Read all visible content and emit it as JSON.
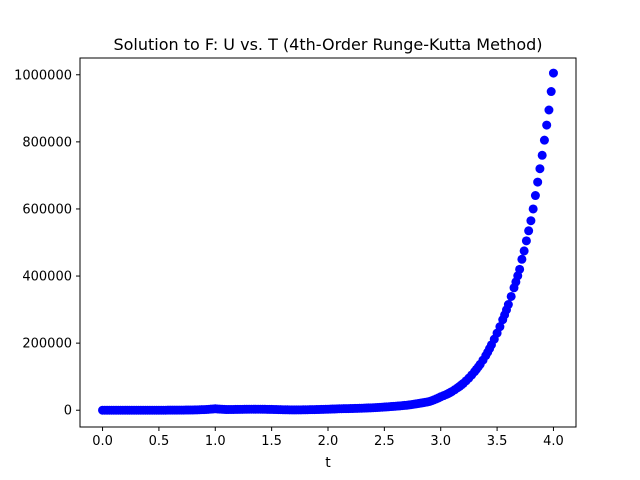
{
  "chart_data": {
    "type": "scatter",
    "title": "Solution to F: U vs. T (4th-Order Runge-Kutta Method)",
    "xlabel": "t",
    "ylabel": "",
    "xlim": [
      -0.2,
      4.2
    ],
    "ylim": [
      -50000,
      1050000
    ],
    "xticks": [
      0.0,
      0.5,
      1.0,
      1.5,
      2.0,
      2.5,
      3.0,
      3.5,
      4.0
    ],
    "xtick_labels": [
      "0.0",
      "0.5",
      "1.0",
      "1.5",
      "2.0",
      "2.5",
      "3.0",
      "3.5",
      "4.0"
    ],
    "yticks": [
      0,
      200000,
      400000,
      600000,
      800000,
      1000000
    ],
    "ytick_labels": [
      "0",
      "200000",
      "400000",
      "600000",
      "800000",
      "1000000"
    ],
    "grid": false,
    "marker_color": "#0000ff",
    "series": [
      {
        "x": [
          0.0,
          0.1,
          0.2,
          0.3,
          0.4,
          0.5,
          0.6,
          0.7,
          0.8,
          0.9,
          1.0,
          1.1,
          1.2,
          1.3,
          1.4,
          1.5,
          1.6,
          1.7,
          1.8,
          1.9,
          2.0,
          2.1,
          2.2,
          2.3,
          2.4,
          2.5,
          2.6,
          2.7,
          2.8,
          2.9,
          3.0,
          3.05,
          3.1,
          3.15,
          3.2,
          3.25,
          3.3,
          3.35,
          3.4,
          3.45,
          3.5,
          3.55,
          3.6,
          3.65,
          3.7,
          3.72,
          3.74,
          3.76,
          3.78,
          3.8,
          3.82,
          3.84,
          3.86,
          3.88,
          3.9,
          3.92,
          3.94,
          3.96,
          3.98,
          4.0
        ],
        "y": [
          1,
          3,
          6,
          13,
          31,
          71,
          162,
          368,
          836,
          1900,
          4300,
          2100,
          2500,
          2900,
          3000,
          2400,
          1500,
          1000,
          1400,
          2100,
          3000,
          4400,
          5000,
          6000,
          7500,
          9500,
          12000,
          15000,
          20000,
          26000,
          40000,
          47000,
          56000,
          67000,
          80000,
          96000,
          115000,
          137000,
          163000,
          195000,
          230000,
          270000,
          315000,
          365000,
          420000,
          450000,
          475000,
          505000,
          535000,
          565000,
          600000,
          640000,
          680000,
          720000,
          760000,
          805000,
          850000,
          895000,
          950000,
          1005000
        ]
      }
    ]
  }
}
